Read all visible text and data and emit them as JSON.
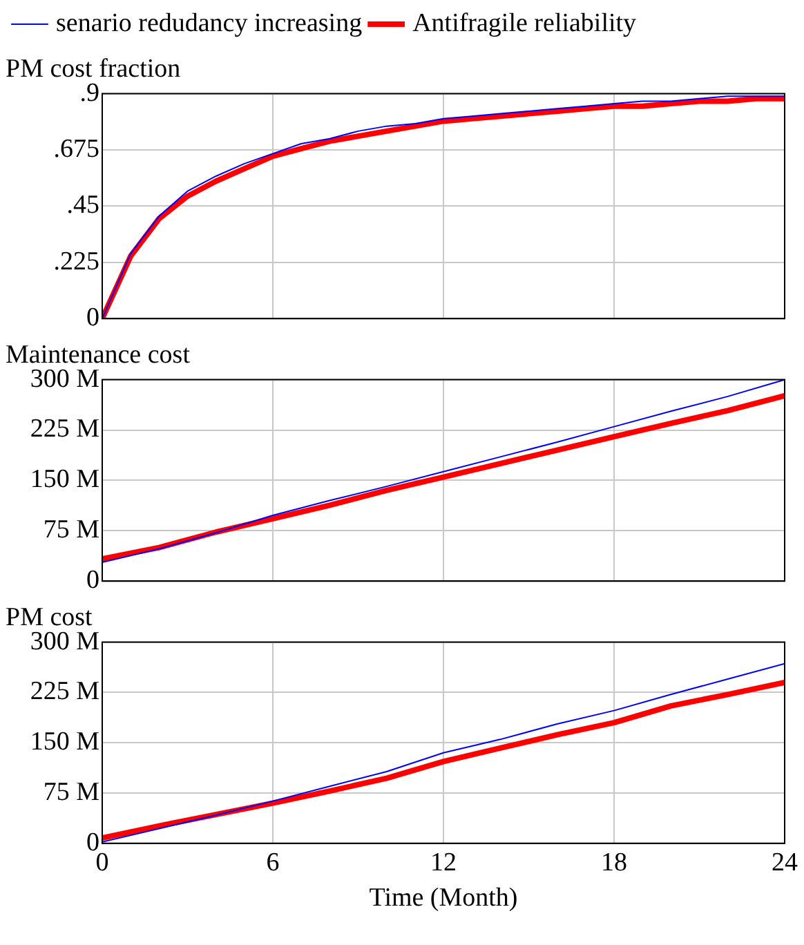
{
  "chart_data": [
    {
      "type": "line",
      "title": "PM cost fraction",
      "legend": "top",
      "grid": true,
      "tick_labels": "y",
      "xlim": [
        0,
        24
      ],
      "xticks": [
        0,
        6,
        12,
        18,
        24
      ],
      "ylim": [
        0,
        0.9
      ],
      "yticks": [
        {
          "value": 0,
          "label": "0"
        },
        {
          "value": 0.225,
          "label": ".225"
        },
        {
          "value": 0.45,
          "label": ".45"
        },
        {
          "value": 0.675,
          "label": ".675"
        },
        {
          "value": 0.9,
          "label": ".9"
        }
      ],
      "x": [
        0,
        1,
        2,
        3,
        4,
        5,
        6,
        7,
        8,
        9,
        10,
        11,
        12,
        13,
        14,
        15,
        16,
        17,
        18,
        19,
        20,
        21,
        22,
        23,
        24
      ],
      "series": [
        {
          "name": "senario redudancy increasing",
          "color": "#0000ff",
          "values": [
            0,
            0.26,
            0.41,
            0.51,
            0.57,
            0.62,
            0.66,
            0.7,
            0.72,
            0.75,
            0.77,
            0.78,
            0.8,
            0.81,
            0.82,
            0.83,
            0.84,
            0.85,
            0.86,
            0.87,
            0.87,
            0.88,
            0.89,
            0.89,
            0.89
          ]
        },
        {
          "name": "Antifragile reliability",
          "color": "#ff0000",
          "values": [
            0,
            0.25,
            0.4,
            0.49,
            0.55,
            0.6,
            0.65,
            0.68,
            0.71,
            0.73,
            0.75,
            0.77,
            0.79,
            0.8,
            0.81,
            0.82,
            0.83,
            0.84,
            0.85,
            0.85,
            0.86,
            0.87,
            0.87,
            0.88,
            0.88
          ]
        }
      ]
    },
    {
      "type": "line",
      "title": "Maintenance cost",
      "grid": true,
      "tick_labels": "y",
      "xlim": [
        0,
        24
      ],
      "xticks": [
        0,
        6,
        12,
        18,
        24
      ],
      "ylim": [
        0,
        300000000
      ],
      "yticks": [
        {
          "value": 0,
          "label": "0"
        },
        {
          "value": 75000000,
          "label": "75 M"
        },
        {
          "value": 150000000,
          "label": "150 M"
        },
        {
          "value": 225000000,
          "label": "225 M"
        },
        {
          "value": 300000000,
          "label": "300 M"
        }
      ],
      "x": [
        0,
        2,
        4,
        6,
        8,
        10,
        12,
        14,
        16,
        18,
        20,
        22,
        24
      ],
      "series": [
        {
          "color": "#0000ff",
          "values": [
            28000000,
            48000000,
            72000000,
            98000000,
            120000000,
            141000000,
            163000000,
            185000000,
            207000000,
            230000000,
            253000000,
            275000000,
            300000000
          ]
        },
        {
          "color": "#ff0000",
          "values": [
            33000000,
            50000000,
            73000000,
            93000000,
            113000000,
            135000000,
            155000000,
            175000000,
            195000000,
            215000000,
            235000000,
            254000000,
            276000000
          ]
        }
      ]
    },
    {
      "type": "line",
      "title": "PM cost",
      "xlabel": "Time (Month)",
      "grid": true,
      "xlim": [
        0,
        24
      ],
      "xticks": [
        0,
        6,
        12,
        18,
        24
      ],
      "ylim": [
        0,
        300000000
      ],
      "yticks": [
        {
          "value": 0,
          "label": "0"
        },
        {
          "value": 75000000,
          "label": "75 M"
        },
        {
          "value": 150000000,
          "label": "150 M"
        },
        {
          "value": 225000000,
          "label": "225 M"
        },
        {
          "value": 300000000,
          "label": "300 M"
        }
      ],
      "x": [
        0,
        2,
        4,
        6,
        8,
        10,
        12,
        14,
        16,
        18,
        20,
        22,
        24
      ],
      "series": [
        {
          "color": "#0000ff",
          "values": [
            2000000,
            22000000,
            42000000,
            63000000,
            85000000,
            107000000,
            135000000,
            155000000,
            178000000,
            198000000,
            222000000,
            245000000,
            268000000
          ]
        },
        {
          "color": "#ff0000",
          "values": [
            8000000,
            26000000,
            43000000,
            60000000,
            78000000,
            97000000,
            122000000,
            142000000,
            162000000,
            180000000,
            205000000,
            222000000,
            240000000
          ]
        }
      ]
    }
  ]
}
